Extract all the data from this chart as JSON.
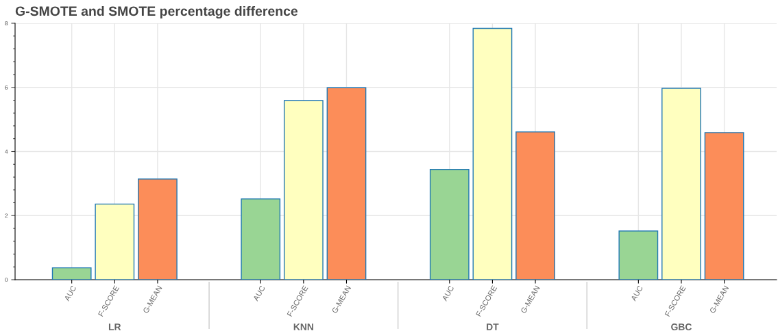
{
  "chart_data": {
    "type": "bar",
    "title": "G-SMOTE and SMOTE percentage difference",
    "categories": [
      "LR",
      "KNN",
      "DT",
      "GBC"
    ],
    "series": [
      {
        "name": "AUC",
        "color": "#99d594",
        "values": [
          0.37,
          2.52,
          3.44,
          1.52
        ]
      },
      {
        "name": "F-SCORE",
        "color": "#ffffbf",
        "values": [
          2.36,
          5.59,
          7.84,
          5.97
        ]
      },
      {
        "name": "G-MEAN",
        "color": "#fc8d59",
        "values": [
          3.14,
          5.99,
          4.61,
          4.59
        ]
      }
    ],
    "ylim": [
      0,
      8
    ],
    "yticks": [
      0,
      2,
      4,
      6,
      8
    ],
    "grid": true,
    "legend": false
  }
}
